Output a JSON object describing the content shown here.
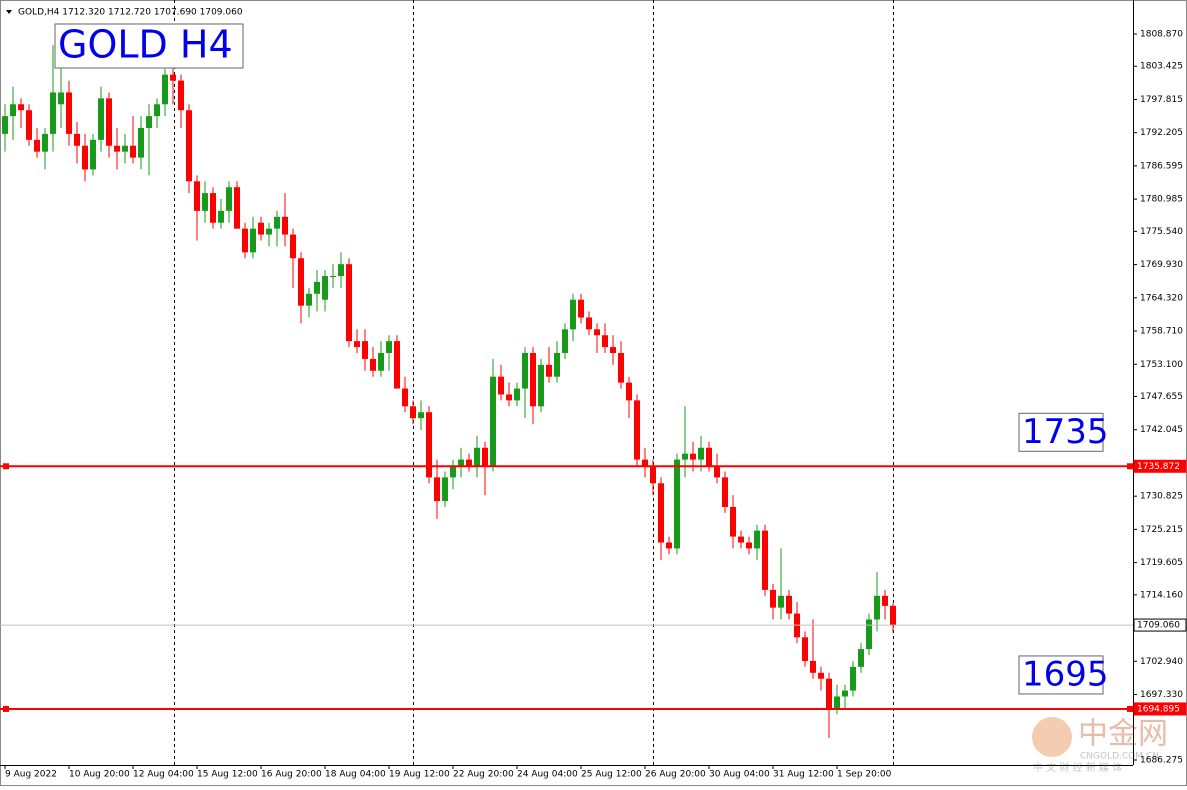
{
  "chart_data": {
    "type": "candlestick",
    "header": "GOLD,H4  1712.320 1712.720 1707.690 1709.060",
    "title": "GOLD H4",
    "x": [
      "9 Aug 2022",
      null,
      null,
      null,
      null,
      null,
      null,
      null,
      "10 Aug 20:00",
      null,
      null,
      null,
      null,
      null,
      null,
      null,
      "12 Aug 04:00",
      null,
      null,
      null,
      null,
      null,
      null,
      null,
      "15 Aug 12:00",
      null,
      null,
      null,
      null,
      null,
      null,
      null,
      "16 Aug 20:00",
      null,
      null,
      null,
      null,
      null,
      null,
      null,
      "18 Aug 04:00",
      null,
      null,
      null,
      null,
      null,
      null,
      null,
      "19 Aug 12:00",
      null,
      null,
      null,
      null,
      null,
      null,
      null,
      "22 Aug 20:00",
      null,
      null,
      null,
      null,
      null,
      null,
      null,
      "24 Aug 04:00",
      null,
      null,
      null,
      null,
      null,
      null,
      null,
      "25 Aug 12:00",
      null,
      null,
      null,
      null,
      null,
      null,
      null,
      "26 Aug 20:00",
      null,
      null,
      null,
      null,
      null,
      null,
      null,
      "30 Aug 04:00",
      null,
      null,
      null,
      null,
      null,
      null,
      null,
      "31 Aug 12:00",
      null,
      null,
      null,
      null,
      null,
      null,
      null,
      "1 Sep 20:00",
      null,
      null,
      null,
      null,
      null,
      null,
      null
    ],
    "open": [
      1792,
      1795,
      1797,
      1796,
      1791,
      1789,
      1792,
      1797,
      1799,
      1792,
      1790,
      1786,
      1791,
      1798,
      1790,
      1789,
      1790,
      1788,
      1793,
      1795,
      1797,
      1802,
      1801,
      1796,
      1784,
      1779,
      1782,
      1777,
      1779,
      1783,
      1776,
      1772,
      1777,
      1775,
      1776,
      1778,
      1775,
      1771,
      1763,
      1765,
      1764,
      1768,
      1768,
      1770,
      1757,
      1757,
      1754,
      1752,
      1755,
      1757,
      1749,
      1746,
      1744,
      1745,
      1734,
      1730,
      1734,
      1736,
      1737,
      1736,
      1739,
      1736,
      1751,
      1748,
      1747,
      1749,
      1755,
      1746,
      1753,
      1751,
      1755,
      1759,
      1764,
      1761,
      1759,
      1758,
      1756,
      1755,
      1750,
      1747,
      1737,
      1736,
      1733,
      1723,
      1722,
      1737,
      1738,
      1737,
      1739,
      1736,
      1734,
      1729,
      1724,
      1723,
      1722,
      1725,
      1715,
      1712,
      1714,
      1711,
      1707,
      1703,
      1701,
      1700,
      1695,
      1697,
      1698,
      1702,
      1705,
      1710,
      1714,
      1712.32
    ],
    "high": [
      1797,
      1800,
      1798,
      1797,
      1793,
      1793,
      1807,
      1804,
      1801,
      1794,
      1792,
      1792,
      1800,
      1799,
      1793,
      1792,
      1795,
      1795,
      1797,
      1798,
      1803,
      1803,
      1802,
      1797,
      1785,
      1784,
      1783,
      1781,
      1784,
      1784,
      1777,
      1778,
      1778,
      1777,
      1779,
      1782,
      1776,
      1772,
      1766,
      1769,
      1769,
      1770,
      1772,
      1771,
      1759,
      1759,
      1756,
      1757,
      1758,
      1758,
      1751,
      1747,
      1747,
      1746,
      1737,
      1735,
      1737,
      1739,
      1738,
      1741,
      1740,
      1754,
      1753,
      1750,
      1750,
      1756,
      1756,
      1754,
      1756,
      1757,
      1760,
      1765,
      1765,
      1762,
      1760,
      1760,
      1758,
      1757,
      1751,
      1748,
      1739,
      1737,
      1734,
      1724,
      1738,
      1746,
      1740,
      1741,
      1740,
      1738,
      1735,
      1731,
      1725,
      1724,
      1726,
      1726,
      1716,
      1722,
      1715,
      1713,
      1708,
      1710,
      1702,
      1701,
      1699,
      1699,
      1703,
      1706,
      1711,
      1718,
      1715,
      1712.72
    ],
    "low": [
      1789,
      1791,
      1793,
      1790,
      1788,
      1786,
      1789,
      1793,
      1790,
      1787,
      1784,
      1785,
      1789,
      1788,
      1786,
      1787,
      1787,
      1786,
      1785,
      1793,
      1795,
      1797,
      1793,
      1782,
      1774,
      1777,
      1776,
      1776,
      1777,
      1776,
      1771,
      1771,
      1774,
      1773,
      1773,
      1773,
      1766,
      1760,
      1761,
      1762,
      1762,
      1766,
      1766,
      1756,
      1755,
      1752,
      1751,
      1751,
      1752,
      1749,
      1745,
      1743,
      1742,
      1733,
      1727,
      1729,
      1732,
      1734,
      1735,
      1734,
      1731,
      1735,
      1747,
      1746,
      1746,
      1744,
      1743,
      1745,
      1750,
      1750,
      1754,
      1757,
      1760,
      1758,
      1755,
      1755,
      1753,
      1749,
      1744,
      1736,
      1734,
      1731,
      1720,
      1721,
      1721,
      1734,
      1735,
      1735,
      1735,
      1733,
      1728,
      1722,
      1722,
      1721,
      1720,
      1714,
      1710,
      1710,
      1710,
      1706,
      1702,
      1700,
      1698,
      1690,
      1694,
      1695,
      1697,
      1701,
      1704,
      1708,
      1710,
      1707.69
    ],
    "close": [
      1795,
      1797,
      1796,
      1791,
      1789,
      1792,
      1799,
      1799,
      1792,
      1790,
      1786,
      1791,
      1798,
      1790,
      1789,
      1790,
      1788,
      1793,
      1795,
      1797,
      1802,
      1801,
      1796,
      1784,
      1779,
      1782,
      1777,
      1779,
      1783,
      1776,
      1772,
      1776,
      1775,
      1776,
      1778,
      1775,
      1771,
      1763,
      1765,
      1767,
      1768,
      1768,
      1770,
      1757,
      1756,
      1754,
      1752,
      1755,
      1757,
      1749,
      1746,
      1744,
      1745,
      1734,
      1730,
      1734,
      1736,
      1737,
      1736,
      1739,
      1736,
      1751,
      1748,
      1747,
      1749,
      1755,
      1746,
      1753,
      1751,
      1755,
      1759,
      1764,
      1761,
      1759,
      1758,
      1756,
      1755,
      1750,
      1747,
      1737,
      1736,
      1733,
      1723,
      1722,
      1737,
      1738,
      1737,
      1739,
      1736,
      1734,
      1729,
      1724,
      1723,
      1722,
      1725,
      1715,
      1712,
      1714,
      1711,
      1707,
      1703,
      1701,
      1700,
      1695,
      1697,
      1698,
      1702,
      1705,
      1710,
      1714,
      1712.3,
      1709.06
    ],
    "bull_color": "#1a9a1a",
    "bear_color": "#ff0000",
    "ylim": [
      1685.43,
      1814.61
    ],
    "yticks": [
      {
        "value": 1808.87,
        "label": "1808.870"
      },
      {
        "value": 1803.425,
        "label": "1803.425"
      },
      {
        "value": 1797.815,
        "label": "1797.815"
      },
      {
        "value": 1792.205,
        "label": "1792.205"
      },
      {
        "value": 1786.595,
        "label": "1786.595"
      },
      {
        "value": 1780.985,
        "label": "1780.985"
      },
      {
        "value": 1775.54,
        "label": "1775.540"
      },
      {
        "value": 1769.93,
        "label": "1769.930"
      },
      {
        "value": 1764.32,
        "label": "1764.320"
      },
      {
        "value": 1758.71,
        "label": "1758.710"
      },
      {
        "value": 1753.1,
        "label": "1753.100"
      },
      {
        "value": 1747.655,
        "label": "1747.655"
      },
      {
        "value": 1742.045,
        "label": "1742.045"
      },
      {
        "value": 1730.825,
        "label": "1730.825"
      },
      {
        "value": 1725.215,
        "label": "1725.215"
      },
      {
        "value": 1719.605,
        "label": "1719.605"
      },
      {
        "value": 1714.16,
        "label": "1714.160"
      },
      {
        "value": 1702.94,
        "label": "1702.940"
      },
      {
        "value": 1697.33,
        "label": "1697.330"
      },
      {
        "value": 1686.275,
        "label": "1686.275"
      }
    ],
    "levels": [
      {
        "value": 1735.872,
        "label": "1735.872",
        "color": "#ff0000",
        "note": "1735"
      },
      {
        "value": 1694.895,
        "label": "1694.895",
        "color": "#ff0000",
        "note": "1695"
      },
      {
        "value": 1709.06,
        "label": "1709.060",
        "color": "#c0c0c0"
      }
    ],
    "watermark": {
      "logo": "中金网",
      "site": "CNGOLD.COM.CN",
      "slogan": "中 文 财 经 新 媒 体"
    }
  }
}
